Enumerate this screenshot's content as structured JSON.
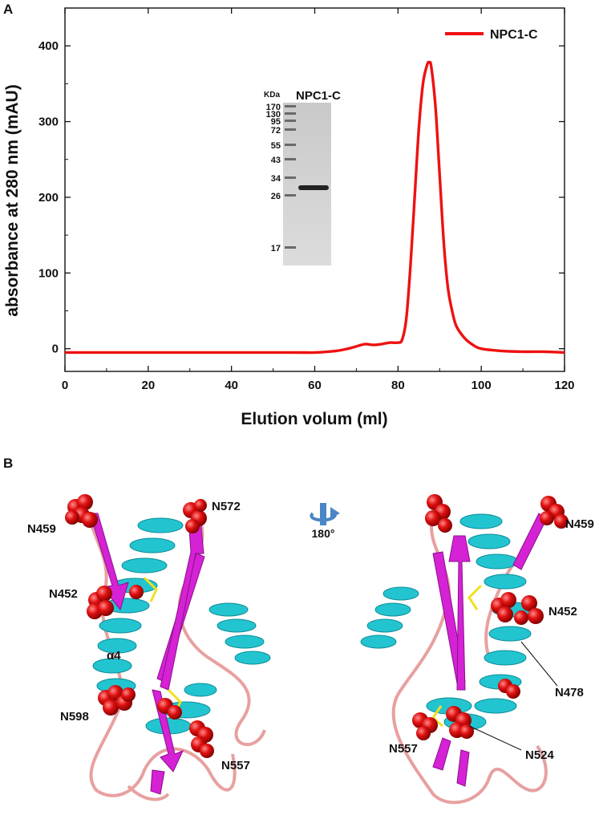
{
  "panels": {
    "a": "A",
    "b": "B"
  },
  "chart_data": {
    "type": "line",
    "title": "",
    "xlabel": "Elution volum (ml)",
    "ylabel": "absorbance at 280 nm (mAU)",
    "xlim": [
      0,
      120
    ],
    "ylim": [
      -30,
      450
    ],
    "xticks": [
      "0",
      "20",
      "40",
      "60",
      "80",
      "100",
      "120"
    ],
    "yticks": [
      "0",
      "100",
      "200",
      "300",
      "400"
    ],
    "xtick_values": [
      0,
      20,
      40,
      60,
      80,
      100,
      120
    ],
    "ytick_values": [
      0,
      100,
      200,
      300,
      400
    ],
    "grid": false,
    "legend_position": "top-right",
    "series": [
      {
        "name": "NPC1-C",
        "color": "#ee1111",
        "x": [
          0,
          20,
          40,
          55,
          60,
          65,
          68,
          70,
          72,
          74,
          76,
          78,
          80,
          81,
          82,
          83,
          84,
          85,
          86,
          87,
          87.5,
          88,
          89,
          90,
          91,
          92,
          93,
          94,
          96,
          98,
          100,
          105,
          110,
          115,
          120
        ],
        "y": [
          -5,
          -5,
          -5,
          -5,
          -5,
          -3,
          0,
          3,
          6,
          5,
          6,
          8,
          8,
          12,
          40,
          110,
          200,
          290,
          350,
          375,
          378,
          372,
          320,
          230,
          140,
          80,
          50,
          30,
          14,
          5,
          0,
          -3,
          -4,
          -4,
          -5
        ]
      }
    ],
    "inset": {
      "title": "NPC1-C",
      "unit": "KDa",
      "markers": [
        "170",
        "130",
        "95",
        "72",
        "55",
        "43",
        "34",
        "26",
        "17"
      ]
    }
  },
  "structure": {
    "rotation_label": "180°",
    "left_labels": [
      "N459",
      "N572",
      "N452",
      "α4",
      "N598",
      "N557"
    ],
    "right_labels": [
      "N459",
      "N452",
      "N478",
      "N557",
      "N524"
    ]
  },
  "colors": {
    "helix": "#22c4d0",
    "strand": "#d522d5",
    "loop": "#e8a0a0",
    "glycan": "#e01010",
    "disulfide": "#f0e020",
    "rotate_icon": "#4a86c5"
  }
}
